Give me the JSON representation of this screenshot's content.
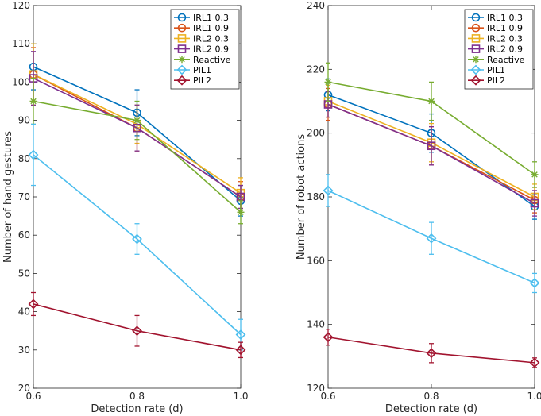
{
  "chart_data": [
    {
      "type": "line",
      "title": "",
      "xlabel": "Detection rate (d)",
      "ylabel": "Number of hand gestures",
      "x": [
        0.6,
        0.8,
        1.0
      ],
      "x_ticks": [
        "0.6",
        "0.8",
        "1.0"
      ],
      "y_ticks": [
        "20",
        "30",
        "40",
        "50",
        "60",
        "70",
        "80",
        "90",
        "100",
        "110",
        "120"
      ],
      "xlim": [
        0.6,
        1.0
      ],
      "ylim": [
        20,
        120
      ],
      "legend": "top-right",
      "series": [
        {
          "name": "IRL1 0.3",
          "color": "#0072bd",
          "marker": "circle",
          "values": [
            104,
            92,
            69
          ],
          "errors": [
            6,
            6,
            4
          ]
        },
        {
          "name": "IRL1 0.9",
          "color": "#d95319",
          "marker": "circle",
          "values": [
            102,
            88,
            70
          ],
          "errors": [
            7,
            6,
            4
          ]
        },
        {
          "name": "IRL2 0.3",
          "color": "#edb120",
          "marker": "square",
          "values": [
            102,
            89,
            71
          ],
          "errors": [
            8,
            5,
            4
          ]
        },
        {
          "name": "IRL2 0.9",
          "color": "#7e2f8e",
          "marker": "square",
          "values": [
            101,
            88,
            70
          ],
          "errors": [
            7,
            6,
            3
          ]
        },
        {
          "name": "Reactive",
          "color": "#77ac30",
          "marker": "star",
          "values": [
            95,
            90,
            66
          ],
          "errors": [
            6,
            5,
            3
          ]
        },
        {
          "name": "PIL1",
          "color": "#4dbeee",
          "marker": "diamond",
          "values": [
            81,
            59,
            34
          ],
          "errors": [
            8,
            4,
            4
          ]
        },
        {
          "name": "PIL2",
          "color": "#a2142f",
          "marker": "diamond",
          "values": [
            42,
            35,
            30
          ],
          "errors": [
            3,
            4,
            2
          ]
        }
      ]
    },
    {
      "type": "line",
      "title": "",
      "xlabel": "Detection rate (d)",
      "ylabel": "Number of robot actions",
      "x": [
        0.6,
        0.8,
        1.0
      ],
      "x_ticks": [
        "0.6",
        "0.8",
        "1.0"
      ],
      "y_ticks": [
        "120",
        "140",
        "160",
        "180",
        "200",
        "220",
        "240"
      ],
      "xlim": [
        0.6,
        1.0
      ],
      "ylim": [
        120,
        240
      ],
      "legend": "top-right",
      "series": [
        {
          "name": "IRL1 0.3",
          "color": "#0072bd",
          "marker": "circle",
          "values": [
            212,
            200,
            177
          ],
          "errors": [
            5,
            6,
            4
          ]
        },
        {
          "name": "IRL1 0.9",
          "color": "#d95319",
          "marker": "circle",
          "values": [
            209,
            196,
            179
          ],
          "errors": [
            5,
            6,
            4
          ]
        },
        {
          "name": "IRL2 0.3",
          "color": "#edb120",
          "marker": "square",
          "values": [
            210,
            197,
            180
          ],
          "errors": [
            5,
            6,
            4
          ]
        },
        {
          "name": "IRL2 0.9",
          "color": "#7e2f8e",
          "marker": "square",
          "values": [
            209,
            196,
            178
          ],
          "errors": [
            4,
            6,
            4
          ]
        },
        {
          "name": "Reactive",
          "color": "#77ac30",
          "marker": "star",
          "values": [
            216,
            210,
            187
          ],
          "errors": [
            6,
            6,
            4
          ]
        },
        {
          "name": "PIL1",
          "color": "#4dbeee",
          "marker": "diamond",
          "values": [
            182,
            167,
            153
          ],
          "errors": [
            5,
            5,
            3
          ]
        },
        {
          "name": "PIL2",
          "color": "#a2142f",
          "marker": "diamond",
          "values": [
            136,
            131,
            128
          ],
          "errors": [
            2.5,
            3,
            1.5
          ]
        }
      ]
    }
  ]
}
